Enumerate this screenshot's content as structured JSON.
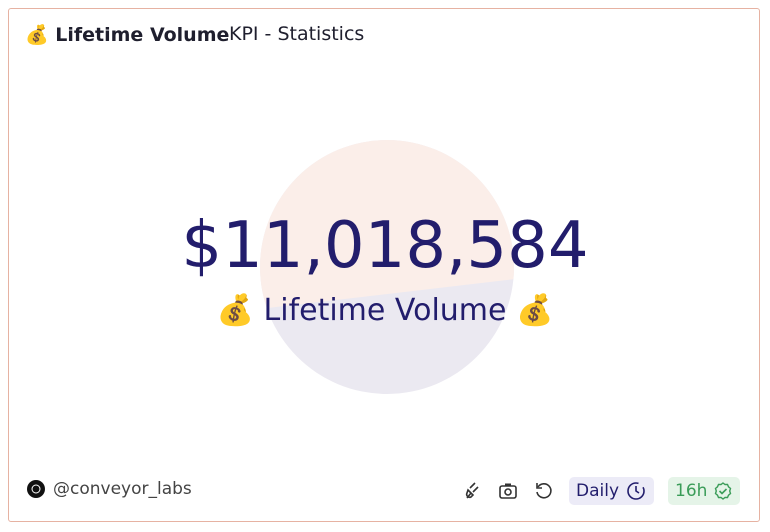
{
  "header": {
    "title": "💰 Lifetime Volume",
    "subtitle": "KPI - Statistics"
  },
  "counter": {
    "value": "$11,018,584",
    "label": "💰 Lifetime Volume 💰"
  },
  "footer": {
    "author": "@conveyor_labs",
    "refresh": "Daily",
    "age": "16h"
  }
}
